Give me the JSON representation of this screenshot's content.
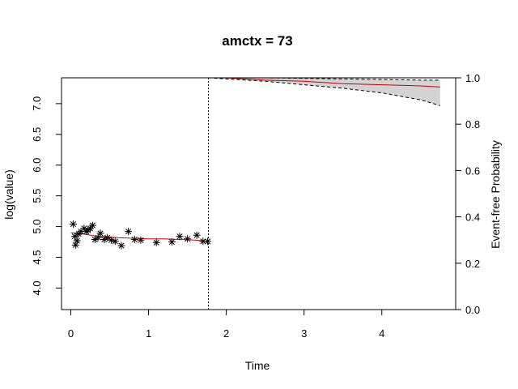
{
  "chart_data": {
    "type": "scatter",
    "title": "amctx = 73",
    "xlabel": "Time",
    "ylabel_left": "log(value)",
    "ylabel_right": "Event-free Probability",
    "xlim": [
      -0.12,
      4.95
    ],
    "ylim_left": [
      3.65,
      7.42
    ],
    "ylim_right": [
      0.0,
      1.0
    ],
    "x_ticks": [
      "0",
      "1",
      "2",
      "3",
      "4"
    ],
    "y_left_ticks": [
      "4.0",
      "4.5",
      "5.0",
      "5.5",
      "6.0",
      "6.5",
      "7.0"
    ],
    "y_right_ticks": [
      "0.0",
      "0.2",
      "0.4",
      "0.6",
      "0.8",
      "1.0"
    ],
    "vline_x": 1.77,
    "grid": false,
    "legend": "none",
    "colors": {
      "points": "#000000",
      "fitted_line": "#cc0000",
      "survival_line": "#cc0000",
      "band_fill": "#d3d3d3",
      "band_edge": "#000000"
    },
    "series": [
      {
        "kind": "observed",
        "marker": "asterisk",
        "x": [
          0.03,
          0.05,
          0.06,
          0.08,
          0.1,
          0.13,
          0.17,
          0.2,
          0.22,
          0.25,
          0.28,
          0.31,
          0.35,
          0.38,
          0.43,
          0.47,
          0.52,
          0.57,
          0.65,
          0.74,
          0.82,
          0.9,
          1.1,
          1.3,
          1.4,
          1.5,
          1.62,
          1.7,
          1.76
        ],
        "y": [
          5.04,
          4.84,
          4.7,
          4.77,
          4.88,
          4.92,
          4.97,
          4.92,
          4.94,
          4.97,
          5.02,
          4.79,
          4.82,
          4.89,
          4.79,
          4.82,
          4.78,
          4.76,
          4.69,
          4.92,
          4.79,
          4.78,
          4.74,
          4.75,
          4.84,
          4.8,
          4.86,
          4.76,
          4.76
        ]
      },
      {
        "kind": "fitted",
        "x": [
          0.0,
          0.1,
          0.2,
          0.3,
          0.4,
          0.6,
          0.8,
          1.0,
          1.2,
          1.4,
          1.6,
          1.77
        ],
        "y": [
          4.9,
          4.89,
          4.87,
          4.85,
          4.84,
          4.82,
          4.81,
          4.8,
          4.8,
          4.79,
          4.78,
          4.76
        ]
      },
      {
        "kind": "event_free_probability",
        "x": [
          1.77,
          2.0,
          2.5,
          3.0,
          3.5,
          4.0,
          4.5,
          4.75
        ],
        "y": [
          1.0,
          1.0,
          0.99,
          0.985,
          0.975,
          0.97,
          0.965,
          0.96
        ],
        "lower": [
          1.0,
          0.995,
          0.985,
          0.97,
          0.955,
          0.935,
          0.905,
          0.88
        ],
        "upper": [
          1.0,
          1.0,
          1.0,
          0.998,
          0.995,
          0.993,
          0.99,
          0.99
        ]
      }
    ]
  }
}
